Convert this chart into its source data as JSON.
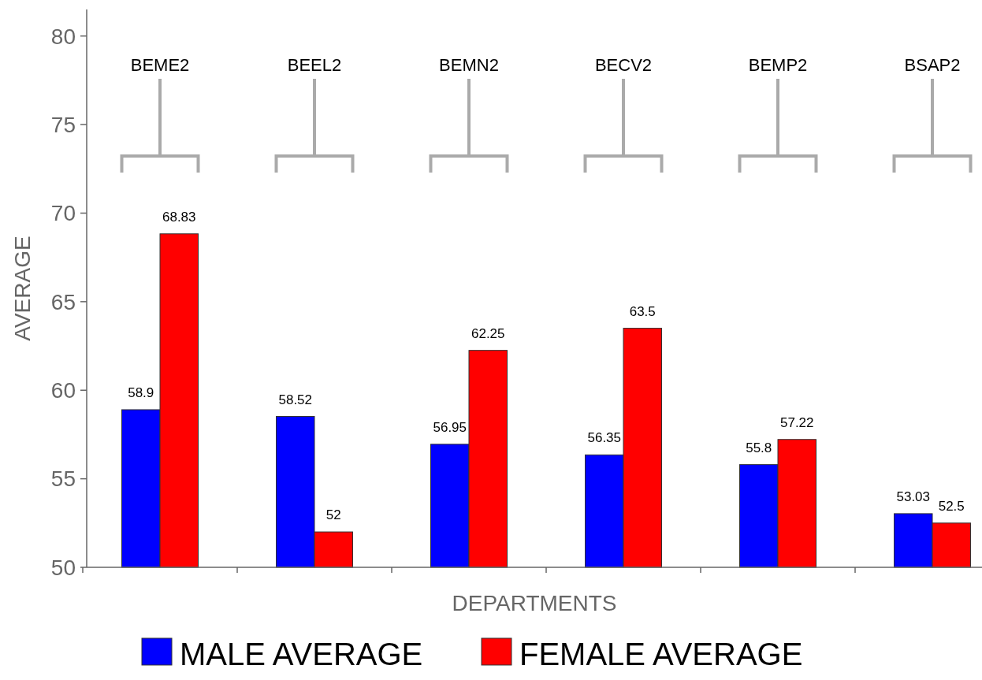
{
  "chart_data": {
    "type": "bar",
    "xlabel": "DEPARTMENTS",
    "ylabel": "AVERAGE",
    "categories": [
      "BEME2",
      "BEEL2",
      "BEMN2",
      "BECV2",
      "BEMP2",
      "BSAP2"
    ],
    "series": [
      {
        "name": "MALE AVERAGE",
        "color": "#0000ff",
        "values": [
          58.9,
          58.52,
          56.95,
          56.35,
          55.8,
          53.03
        ]
      },
      {
        "name": "FEMALE AVERAGE",
        "color": "#ff0000",
        "values": [
          68.83,
          52,
          62.25,
          63.5,
          57.22,
          52.5
        ]
      }
    ],
    "ylim": [
      50,
      81.5
    ],
    "yticks": [
      50,
      55,
      60,
      65,
      70,
      75,
      80
    ],
    "data_labels": true,
    "legend": "bottom",
    "grid": false
  }
}
